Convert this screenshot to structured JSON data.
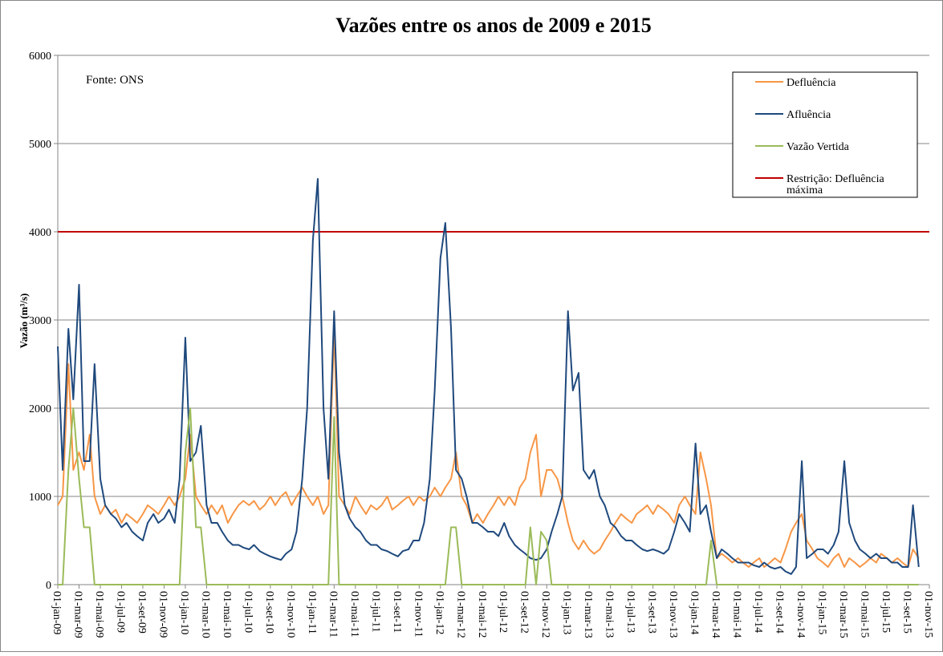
{
  "chart_data": {
    "type": "line",
    "title": "Vazões entre os anos de 2009 e 2015",
    "y_label": "Vazão (m³/s)",
    "annotation": "Fonte: ONS",
    "ylim": [
      0,
      6000
    ],
    "yticks": [
      0,
      1000,
      2000,
      3000,
      4000,
      5000,
      6000
    ],
    "grid": true,
    "legend": "upper right",
    "xlim": [
      "01-jan-09",
      "01-nov-15"
    ],
    "xticks": [
      "01-jan-09",
      "01-mar-09",
      "01-mai-09",
      "01-jul-09",
      "01-set-09",
      "01-nov-09",
      "01-jan-10",
      "01-mar-10",
      "01-mai-10",
      "01-jul-10",
      "01-set-10",
      "01-nov-10",
      "01-jan-11",
      "01-mar-11",
      "01-mai-11",
      "01-jul-11",
      "01-set-11",
      "01-nov-11",
      "01-jan-12",
      "01-mar-12",
      "01-mai-12",
      "01-jul-12",
      "01-set-12",
      "01-nov-12",
      "01-jan-13",
      "01-mar-13",
      "01-mai-13",
      "01-jul-13",
      "01-set-13",
      "01-nov-13",
      "01-jan-14",
      "01-mar-14",
      "01-mai-14",
      "01-jul-14",
      "01-set-14",
      "01-nov-14",
      "01-jan-15",
      "01-mar-15",
      "01-mai-15",
      "01-jul-15",
      "01-set-15",
      "01-nov-15"
    ],
    "x": [
      "01-jan-09",
      "15-jan-09",
      "01-fev-09",
      "15-fev-09",
      "01-mar-09",
      "15-mar-09",
      "01-abr-09",
      "15-abr-09",
      "01-mai-09",
      "15-mai-09",
      "01-jun-09",
      "15-jun-09",
      "01-jul-09",
      "15-jul-09",
      "01-ago-09",
      "15-ago-09",
      "01-set-09",
      "15-set-09",
      "01-out-09",
      "15-out-09",
      "01-nov-09",
      "15-nov-09",
      "01-dez-09",
      "15-dez-09",
      "01-jan-10",
      "15-jan-10",
      "01-fev-10",
      "15-fev-10",
      "01-mar-10",
      "15-mar-10",
      "01-abr-10",
      "15-abr-10",
      "01-mai-10",
      "15-mai-10",
      "01-jun-10",
      "15-jun-10",
      "01-jul-10",
      "15-jul-10",
      "01-ago-10",
      "15-ago-10",
      "01-set-10",
      "15-set-10",
      "01-out-10",
      "15-out-10",
      "01-nov-10",
      "15-nov-10",
      "01-dez-10",
      "15-dez-10",
      "01-jan-11",
      "15-jan-11",
      "01-fev-11",
      "15-fev-11",
      "01-mar-11",
      "15-mar-11",
      "01-abr-11",
      "15-abr-11",
      "01-mai-11",
      "15-mai-11",
      "01-jun-11",
      "15-jun-11",
      "01-jul-11",
      "15-jul-11",
      "01-ago-11",
      "15-ago-11",
      "01-set-11",
      "15-set-11",
      "01-out-11",
      "15-out-11",
      "01-nov-11",
      "15-nov-11",
      "01-dez-11",
      "15-dez-11",
      "01-jan-12",
      "15-jan-12",
      "01-fev-12",
      "15-fev-12",
      "01-mar-12",
      "15-mar-12",
      "01-abr-12",
      "15-abr-12",
      "01-mai-12",
      "15-mai-12",
      "01-jun-12",
      "15-jun-12",
      "01-jul-12",
      "15-jul-12",
      "01-ago-12",
      "15-ago-12",
      "01-set-12",
      "15-set-12",
      "01-out-12",
      "15-out-12",
      "01-nov-12",
      "15-nov-12",
      "01-dez-12",
      "15-dez-12",
      "01-jan-13",
      "15-jan-13",
      "01-fev-13",
      "15-fev-13",
      "01-mar-13",
      "15-mar-13",
      "01-abr-13",
      "15-abr-13",
      "01-mai-13",
      "15-mai-13",
      "01-jun-13",
      "15-jun-13",
      "01-jul-13",
      "15-jul-13",
      "01-ago-13",
      "15-ago-13",
      "01-set-13",
      "15-set-13",
      "01-out-13",
      "15-out-13",
      "01-nov-13",
      "15-nov-13",
      "01-dez-13",
      "15-dez-13",
      "01-jan-14",
      "15-jan-14",
      "01-fev-14",
      "15-fev-14",
      "01-mar-14",
      "15-mar-14",
      "01-abr-14",
      "15-abr-14",
      "01-mai-14",
      "15-mai-14",
      "01-jun-14",
      "15-jun-14",
      "01-jul-14",
      "15-jul-14",
      "01-ago-14",
      "15-ago-14",
      "01-set-14",
      "15-set-14",
      "01-out-14",
      "15-out-14",
      "01-nov-14",
      "15-nov-14",
      "01-dez-14",
      "15-dez-14",
      "01-jan-15",
      "15-jan-15",
      "01-fev-15",
      "15-fev-15",
      "01-mar-15",
      "15-mar-15",
      "01-abr-15",
      "15-abr-15",
      "01-mai-15",
      "15-mai-15",
      "01-jun-15",
      "15-jun-15",
      "01-jul-15",
      "15-jul-15",
      "01-ago-15",
      "15-ago-15",
      "01-set-15",
      "15-set-15",
      "01-out-15"
    ],
    "series": [
      {
        "name": "Defluência",
        "color": "#f79646",
        "values": [
          900,
          1000,
          2500,
          1300,
          1500,
          1300,
          1700,
          1000,
          800,
          900,
          800,
          850,
          700,
          800,
          750,
          700,
          800,
          900,
          850,
          800,
          900,
          1000,
          900,
          1000,
          1200,
          1700,
          1000,
          900,
          800,
          900,
          800,
          900,
          700,
          800,
          900,
          950,
          900,
          950,
          850,
          900,
          1000,
          900,
          1000,
          1050,
          900,
          1000,
          1100,
          1000,
          900,
          1000,
          800,
          900,
          2900,
          1000,
          900,
          800,
          1000,
          900,
          800,
          900,
          850,
          900,
          1000,
          850,
          900,
          950,
          1000,
          900,
          1000,
          950,
          1000,
          1100,
          1000,
          1100,
          1200,
          1500,
          1000,
          900,
          700,
          800,
          700,
          800,
          900,
          1000,
          900,
          1000,
          900,
          1100,
          1200,
          1500,
          1700,
          1000,
          1300,
          1300,
          1200,
          1000,
          700,
          500,
          400,
          500,
          400,
          350,
          400,
          500,
          600,
          700,
          800,
          750,
          700,
          800,
          850,
          900,
          800,
          900,
          850,
          800,
          700,
          900,
          1000,
          900,
          800,
          1500,
          1200,
          900,
          300,
          350,
          300,
          250,
          300,
          250,
          200,
          250,
          300,
          200,
          250,
          300,
          250,
          400,
          600,
          700,
          800,
          500,
          400,
          300,
          250,
          200,
          300,
          350,
          200,
          300,
          250,
          200,
          250,
          300,
          250,
          350,
          300,
          250,
          300,
          250,
          200,
          400,
          300
        ]
      },
      {
        "name": "Afluência",
        "color": "#1f497d",
        "values": [
          2700,
          1300,
          2900,
          2100,
          3400,
          1400,
          1400,
          2500,
          1200,
          900,
          800,
          750,
          650,
          700,
          600,
          550,
          500,
          700,
          800,
          700,
          750,
          850,
          700,
          1200,
          2800,
          1400,
          1500,
          1800,
          900,
          700,
          700,
          600,
          500,
          450,
          450,
          420,
          400,
          450,
          380,
          350,
          320,
          300,
          280,
          350,
          400,
          600,
          1200,
          2000,
          3900,
          4600,
          2000,
          1200,
          3100,
          1500,
          900,
          750,
          650,
          600,
          500,
          450,
          450,
          400,
          380,
          350,
          320,
          380,
          400,
          500,
          500,
          700,
          1200,
          2200,
          3700,
          4100,
          2900,
          1300,
          1200,
          1000,
          700,
          700,
          650,
          600,
          600,
          550,
          700,
          550,
          450,
          400,
          350,
          300,
          280,
          300,
          400,
          600,
          800,
          1000,
          3100,
          2200,
          2400,
          1300,
          1200,
          1300,
          1000,
          900,
          700,
          650,
          550,
          500,
          500,
          450,
          400,
          380,
          400,
          380,
          350,
          400,
          600,
          800,
          700,
          600,
          1600,
          800,
          900,
          600,
          300,
          400,
          350,
          300,
          250,
          250,
          250,
          220,
          200,
          250,
          200,
          180,
          200,
          150,
          120,
          200,
          1400,
          300,
          350,
          400,
          400,
          350,
          450,
          600,
          1400,
          700,
          500,
          400,
          350,
          300,
          350,
          300,
          300,
          250,
          250,
          200,
          200,
          900,
          200
        ]
      },
      {
        "name": "Vazão Vertida",
        "color": "#9bbb59",
        "values": [
          0,
          0,
          1300,
          2000,
          1200,
          650,
          650,
          0,
          0,
          0,
          0,
          0,
          0,
          0,
          0,
          0,
          0,
          0,
          0,
          0,
          0,
          0,
          0,
          0,
          1500,
          2000,
          650,
          650,
          0,
          0,
          0,
          0,
          0,
          0,
          0,
          0,
          0,
          0,
          0,
          0,
          0,
          0,
          0,
          0,
          0,
          0,
          0,
          0,
          0,
          0,
          0,
          0,
          1900,
          0,
          0,
          0,
          0,
          0,
          0,
          0,
          0,
          0,
          0,
          0,
          0,
          0,
          0,
          0,
          0,
          0,
          0,
          0,
          0,
          0,
          650,
          650,
          0,
          0,
          0,
          0,
          0,
          0,
          0,
          0,
          0,
          0,
          0,
          0,
          0,
          650,
          0,
          600,
          500,
          0,
          0,
          0,
          0,
          0,
          0,
          0,
          0,
          0,
          0,
          0,
          0,
          0,
          0,
          0,
          0,
          0,
          0,
          0,
          0,
          0,
          0,
          0,
          0,
          0,
          0,
          0,
          0,
          0,
          0,
          500,
          0,
          0,
          0,
          0,
          0,
          0,
          0,
          0,
          0,
          0,
          0,
          0,
          0,
          0,
          0,
          0,
          0,
          0,
          0,
          0,
          0,
          0,
          0,
          0,
          0,
          0,
          0,
          0,
          0,
          0,
          0,
          0,
          0,
          0,
          0,
          0,
          0,
          0,
          0
        ]
      }
    ],
    "reference_line": {
      "name": "Restrição: Defluência máxima",
      "color": "#c00000",
      "value": 4000
    }
  }
}
